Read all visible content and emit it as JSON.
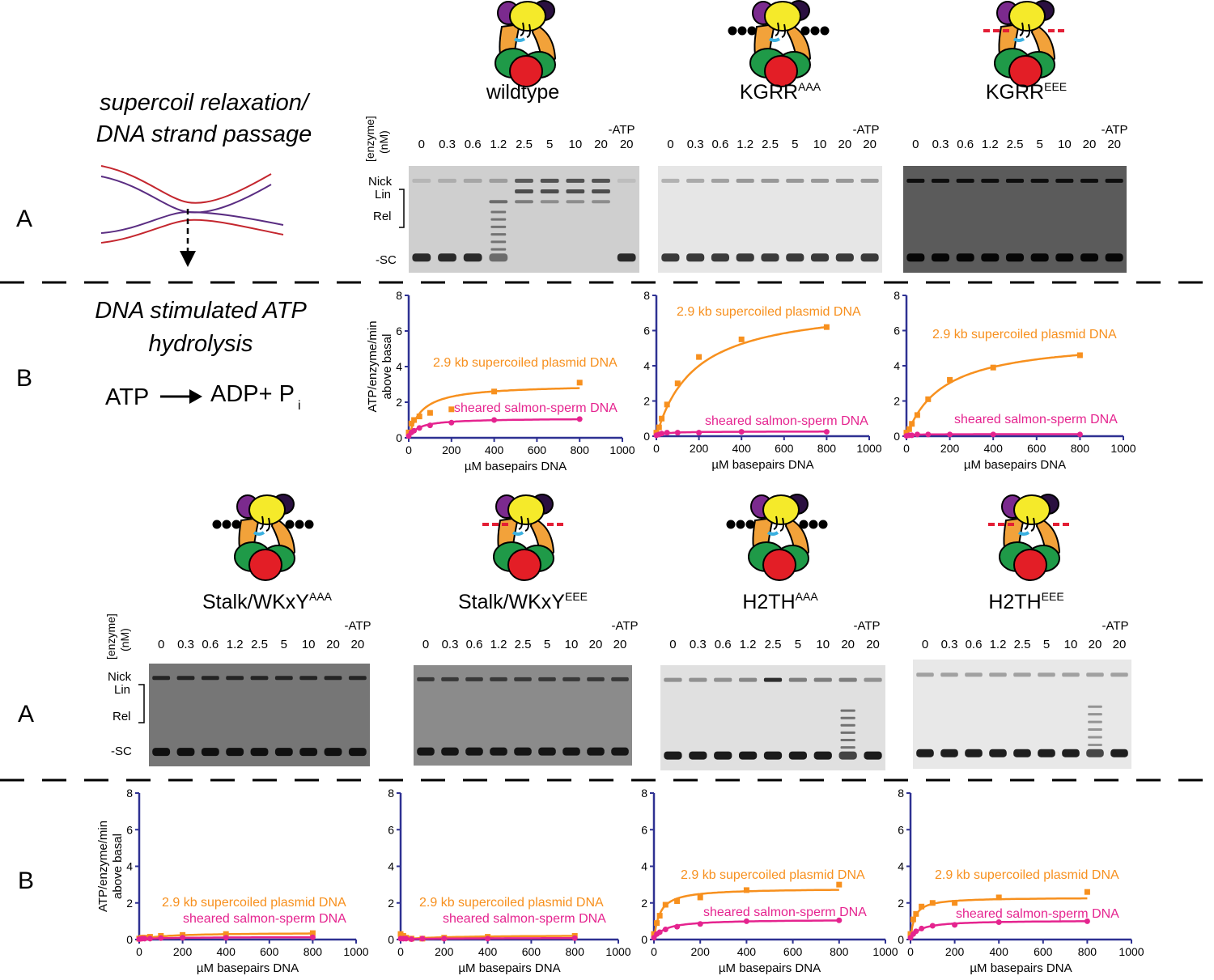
{
  "figure": {
    "panel_letters": [
      "A",
      "B",
      "A",
      "B"
    ],
    "left_text": {
      "relax_line1": "supercoil relaxation/",
      "relax_line2": "DNA strand passage",
      "atp_line1": "DNA stimulated ATP",
      "atp_line2": "hydrolysis",
      "reaction_left": "ATP",
      "reaction_right": "ADP+ P",
      "reaction_sub": "i"
    },
    "gel_labels": {
      "enzyme_line1": "[enzyme]",
      "enzyme_line2": "(nM)",
      "minus_atp": "-ATP",
      "lanes": [
        "0",
        "0.3",
        "0.6",
        "1.2",
        "2.5",
        "5",
        "10",
        "20",
        "20"
      ],
      "band_labels": [
        "Nick",
        "Lin",
        "Rel",
        "-SC"
      ]
    },
    "constructs": [
      {
        "name": "wildtype",
        "sup": "",
        "marks": "none"
      },
      {
        "name": "KGRR",
        "sup": "AAA",
        "marks": "dots"
      },
      {
        "name": "KGRR",
        "sup": "EEE",
        "marks": "dashes"
      },
      {
        "name": "Stalk/WKxY",
        "sup": "AAA",
        "marks": "dots"
      },
      {
        "name": "Stalk/WKxY",
        "sup": "EEE",
        "marks": "dashes"
      },
      {
        "name": "H2TH",
        "sup": "AAA",
        "marks": "dots"
      },
      {
        "name": "H2TH",
        "sup": "EEE",
        "marks": "dashes"
      }
    ],
    "colors": {
      "plasmid": "#f7901e",
      "salmon": "#e5248f",
      "axis": "#2e3192"
    }
  },
  "chart_data": [
    {
      "type": "scatter",
      "construct": "wildtype",
      "xlabel": "µM basepairs DNA",
      "ylabel": "ATP/enzyme/min above basal",
      "xlim": [
        0,
        1000
      ],
      "ylim": [
        0,
        8
      ],
      "xticks": [
        0,
        200,
        400,
        600,
        800,
        1000
      ],
      "yticks": [
        0,
        2,
        4,
        6,
        8
      ],
      "series": [
        {
          "name": "2.9 kb supercoiled plasmid DNA",
          "x": [
            0,
            12.5,
            25,
            50,
            100,
            200,
            400,
            800
          ],
          "y": [
            0.3,
            0.8,
            1.0,
            1.2,
            1.4,
            1.6,
            2.6,
            3.1
          ],
          "fit": {
            "vmax": 3.0,
            "km": 60
          }
        },
        {
          "name": "sheared salmon-sperm DNA",
          "x": [
            0,
            12.5,
            25,
            50,
            100,
            200,
            400,
            800
          ],
          "y": [
            0.1,
            0.3,
            0.4,
            0.55,
            0.7,
            0.85,
            1.0,
            1.05
          ],
          "fit": {
            "vmax": 1.1,
            "km": 45
          }
        }
      ]
    },
    {
      "type": "scatter",
      "construct": "KGRR AAA",
      "xlabel": "µM basepairs DNA",
      "ylabel": "",
      "xlim": [
        0,
        1000
      ],
      "ylim": [
        0,
        8
      ],
      "xticks": [
        0,
        200,
        400,
        600,
        800,
        1000
      ],
      "yticks": [
        0,
        2,
        4,
        6,
        8
      ],
      "series": [
        {
          "name": "2.9 kb supercoiled plasmid DNA",
          "x": [
            0,
            12.5,
            25,
            50,
            100,
            200,
            400,
            800
          ],
          "y": [
            0.2,
            0.5,
            1.0,
            1.8,
            3.0,
            4.5,
            5.5,
            6.2
          ],
          "fit": {
            "vmax": 7.6,
            "km": 180
          }
        },
        {
          "name": "sheared salmon-sperm DNA",
          "x": [
            0,
            12.5,
            25,
            50,
            100,
            200,
            400,
            800
          ],
          "y": [
            0.05,
            0.1,
            0.15,
            0.2,
            0.2,
            0.2,
            0.25,
            0.25
          ],
          "fit": {
            "vmax": 0.27,
            "km": 30
          }
        }
      ]
    },
    {
      "type": "scatter",
      "construct": "KGRR EEE",
      "xlabel": "µM basepairs DNA",
      "ylabel": "",
      "xlim": [
        0,
        1000
      ],
      "ylim": [
        0,
        8
      ],
      "xticks": [
        0,
        200,
        400,
        600,
        800,
        1000
      ],
      "yticks": [
        0,
        2,
        4,
        6,
        8
      ],
      "series": [
        {
          "name": "2.9 kb supercoiled plasmid DNA",
          "x": [
            0,
            12.5,
            25,
            50,
            100,
            200,
            400,
            800
          ],
          "y": [
            0.2,
            0.4,
            0.7,
            1.2,
            2.1,
            3.2,
            3.9,
            4.6
          ],
          "fit": {
            "vmax": 5.6,
            "km": 170
          }
        },
        {
          "name": "sheared salmon-sperm DNA",
          "x": [
            0,
            12.5,
            25,
            50,
            100,
            200,
            400,
            800
          ],
          "y": [
            0.02,
            0.05,
            0.05,
            0.1,
            0.1,
            0.1,
            0.1,
            0.1
          ],
          "fit": {
            "vmax": 0.12,
            "km": 20
          }
        }
      ]
    },
    {
      "type": "scatter",
      "construct": "Stalk/WKxY AAA",
      "xlabel": "µM basepairs DNA",
      "ylabel": "ATP/enzyme/min above basal",
      "xlim": [
        0,
        1000
      ],
      "ylim": [
        0,
        8
      ],
      "xticks": [
        0,
        200,
        400,
        600,
        800,
        1000
      ],
      "yticks": [
        0,
        2,
        4,
        6,
        8
      ],
      "series": [
        {
          "name": "2.9 kb supercoiled plasmid DNA",
          "x": [
            0,
            12.5,
            25,
            50,
            100,
            200,
            400,
            800
          ],
          "y": [
            0.05,
            0.1,
            0.1,
            0.15,
            0.2,
            0.25,
            0.3,
            0.35
          ],
          "fit": {
            "vmax": 0.38,
            "km": 120
          }
        },
        {
          "name": "sheared salmon-sperm DNA",
          "x": [
            0,
            12.5,
            25,
            50,
            100,
            200,
            400,
            800
          ],
          "y": [
            0.02,
            0.05,
            0.05,
            0.05,
            0.08,
            0.1,
            0.1,
            0.12
          ],
          "fit": {
            "vmax": 0.14,
            "km": 100
          }
        }
      ]
    },
    {
      "type": "scatter",
      "construct": "Stalk/WKxY EEE",
      "xlabel": "µM basepairs DNA",
      "ylabel": "",
      "xlim": [
        0,
        1000
      ],
      "ylim": [
        0,
        8
      ],
      "xticks": [
        0,
        200,
        400,
        600,
        800,
        1000
      ],
      "yticks": [
        0,
        2,
        4,
        6,
        8
      ],
      "series": [
        {
          "name": "2.9 kb supercoiled plasmid DNA",
          "x": [
            0,
            12.5,
            25,
            50,
            100,
            200,
            400,
            800
          ],
          "y": [
            0.3,
            0.2,
            0.1,
            0.05,
            0.05,
            0.1,
            0.15,
            0.2
          ],
          "fit": {
            "vmax": 0.25,
            "km": 200
          }
        },
        {
          "name": "sheared salmon-sperm DNA",
          "x": [
            0,
            12.5,
            25,
            50,
            100,
            200,
            400,
            800
          ],
          "y": [
            0.05,
            0.05,
            0.05,
            0.02,
            0.05,
            0.05,
            0.05,
            0.08
          ],
          "fit": {
            "vmax": 0.09,
            "km": 150
          }
        }
      ]
    },
    {
      "type": "scatter",
      "construct": "H2TH AAA",
      "xlabel": "µM basepairs DNA",
      "ylabel": "",
      "xlim": [
        0,
        1000
      ],
      "ylim": [
        0,
        8
      ],
      "xticks": [
        0,
        200,
        400,
        600,
        800,
        1000
      ],
      "yticks": [
        0,
        2,
        4,
        6,
        8
      ],
      "series": [
        {
          "name": "2.9 kb supercoiled plasmid DNA",
          "x": [
            0,
            12.5,
            25,
            50,
            100,
            200,
            400,
            800
          ],
          "y": [
            0.3,
            0.9,
            1.3,
            1.9,
            2.1,
            2.3,
            2.7,
            3.0
          ],
          "fit": {
            "vmax": 2.8,
            "km": 25
          }
        },
        {
          "name": "sheared salmon-sperm DNA",
          "x": [
            0,
            12.5,
            25,
            50,
            100,
            200,
            400,
            800
          ],
          "y": [
            0.1,
            0.3,
            0.4,
            0.55,
            0.7,
            0.85,
            1.0,
            1.05
          ],
          "fit": {
            "vmax": 1.1,
            "km": 45
          }
        }
      ]
    },
    {
      "type": "scatter",
      "construct": "H2TH EEE",
      "xlabel": "µM basepairs DNA",
      "ylabel": "",
      "xlim": [
        0,
        1000
      ],
      "ylim": [
        0,
        8
      ],
      "xticks": [
        0,
        200,
        400,
        600,
        800,
        1000
      ],
      "yticks": [
        0,
        2,
        4,
        6,
        8
      ],
      "series": [
        {
          "name": "2.9 kb supercoiled plasmid DNA",
          "x": [
            0,
            12.5,
            25,
            50,
            100,
            200,
            400,
            800
          ],
          "y": [
            0.3,
            1.1,
            1.4,
            1.8,
            2.0,
            2.0,
            2.3,
            2.6
          ],
          "fit": {
            "vmax": 2.3,
            "km": 18
          }
        },
        {
          "name": "sheared salmon-sperm DNA",
          "x": [
            0,
            12.5,
            25,
            50,
            100,
            200,
            400,
            800
          ],
          "y": [
            0.1,
            0.3,
            0.45,
            0.6,
            0.75,
            0.8,
            0.95,
            1.0
          ],
          "fit": {
            "vmax": 1.05,
            "km": 40
          }
        }
      ]
    }
  ]
}
